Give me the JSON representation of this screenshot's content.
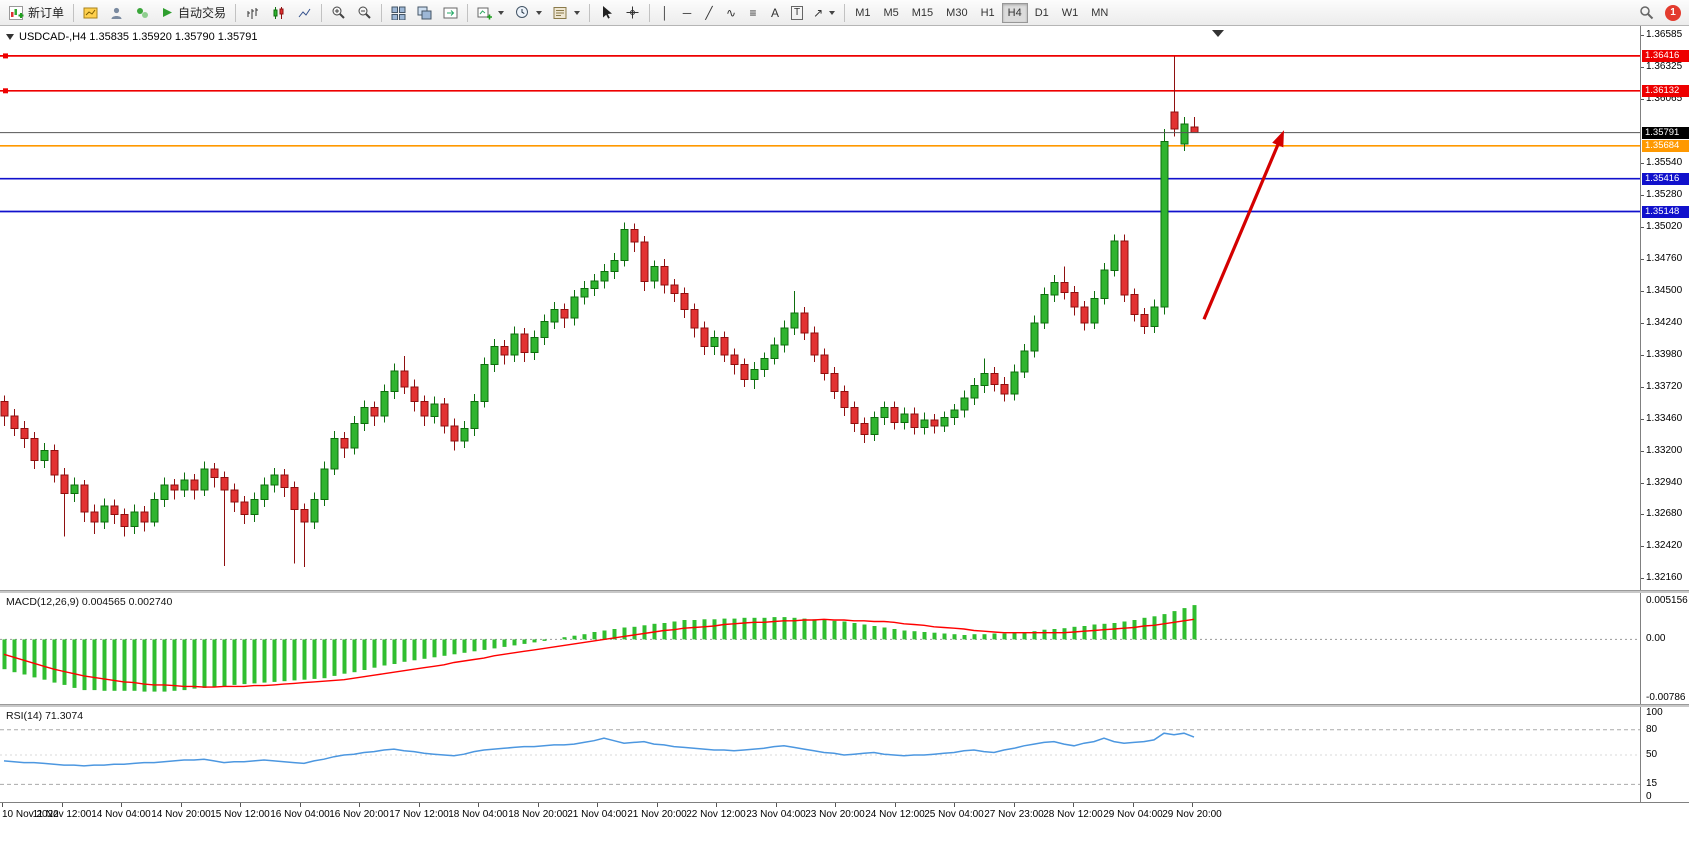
{
  "toolbar": {
    "new_order": "新订单",
    "autotrading": "自动交易",
    "badge_count": "1",
    "timeframes": [
      "M1",
      "M5",
      "M15",
      "M30",
      "H1",
      "H4",
      "D1",
      "W1",
      "MN"
    ],
    "active_timeframe": "H4",
    "line_tools": [
      {
        "name": "vertical-line-tool",
        "glyph": "│"
      },
      {
        "name": "horizontal-line-tool",
        "glyph": "─"
      },
      {
        "name": "trendline-tool",
        "glyph": "╱"
      },
      {
        "name": "cycle-lines-tool",
        "glyph": "∿"
      },
      {
        "name": "fibonacci-retracement-tool",
        "glyph": "≡"
      },
      {
        "name": "text-tool",
        "glyph": "A"
      },
      {
        "name": "text-label-tool",
        "glyph": "T",
        "boxed": true
      },
      {
        "name": "arrows-tool",
        "glyph": "↗",
        "caret": true
      }
    ]
  },
  "chart": {
    "title": "USDCAD-,H4 1.35835 1.35920 1.35790 1.35791",
    "symbol": "USDCAD-",
    "period": "H4",
    "open": "1.35835",
    "high": "1.35920",
    "low": "1.35790",
    "close": "1.35791"
  },
  "chart_data": {
    "type": "candlestick",
    "symbol": "USDCAD",
    "timeframe": "H4",
    "colors": {
      "bull": "#2FB42F",
      "bull_stroke": "#0E6E0E",
      "bear": "#E23232",
      "bear_stroke": "#8F1010",
      "macd": "#30BE30",
      "signal": "#FF0000",
      "rsi": "#4C97E0"
    },
    "price_axis": {
      "top": 1.3666,
      "bottom": 1.32064,
      "ticks": [
        "1.36585",
        "1.36325",
        "1.36065",
        "1.35540",
        "1.35280",
        "1.35020",
        "1.34760",
        "1.34500",
        "1.34240",
        "1.33980",
        "1.33720",
        "1.33460",
        "1.33200",
        "1.32940",
        "1.32680",
        "1.32420",
        "1.32160"
      ]
    },
    "hlines": [
      {
        "price": 1.36416,
        "label": "1.36416",
        "color": "#EE0000",
        "handle": true
      },
      {
        "price": 1.36132,
        "label": "1.36132",
        "color": "#EE0000",
        "handle": true
      },
      {
        "price": 1.35684,
        "label": "1.35684",
        "color": "#FF9900",
        "handle": false
      },
      {
        "price": 1.35416,
        "label": "1.35416",
        "color": "#1111CC",
        "handle": false
      },
      {
        "price": 1.35148,
        "label": "1.35148",
        "color": "#1111CC",
        "handle": false
      }
    ],
    "current_price": {
      "value": 1.35791,
      "label": "1.35791"
    },
    "arrow": {
      "bar_from": 120,
      "price_from": 1.3427,
      "bar_to": 128,
      "price_to": 1.3581,
      "color": "#D40000"
    },
    "candles": [
      [
        1.336,
        1.3365,
        1.334,
        1.3348
      ],
      [
        1.3348,
        1.3354,
        1.3332,
        1.3338
      ],
      [
        1.3338,
        1.3344,
        1.3322,
        1.333
      ],
      [
        1.333,
        1.3335,
        1.3305,
        1.3312
      ],
      [
        1.3312,
        1.3326,
        1.3306,
        1.332
      ],
      [
        1.332,
        1.3325,
        1.3294,
        1.33
      ],
      [
        1.33,
        1.3306,
        1.325,
        1.3285
      ],
      [
        1.3285,
        1.3298,
        1.3278,
        1.3292
      ],
      [
        1.3292,
        1.3296,
        1.3262,
        1.327
      ],
      [
        1.327,
        1.3276,
        1.3252,
        1.3262
      ],
      [
        1.3262,
        1.3281,
        1.3256,
        1.3275
      ],
      [
        1.3275,
        1.328,
        1.326,
        1.3268
      ],
      [
        1.3268,
        1.3273,
        1.325,
        1.3258
      ],
      [
        1.3258,
        1.3276,
        1.3252,
        1.327
      ],
      [
        1.327,
        1.3275,
        1.3254,
        1.3262
      ],
      [
        1.3262,
        1.3286,
        1.3258,
        1.328
      ],
      [
        1.328,
        1.3298,
        1.3274,
        1.3292
      ],
      [
        1.3292,
        1.3297,
        1.328,
        1.3288
      ],
      [
        1.3288,
        1.3302,
        1.3282,
        1.3296
      ],
      [
        1.3296,
        1.3301,
        1.328,
        1.3288
      ],
      [
        1.3288,
        1.3311,
        1.3283,
        1.3305
      ],
      [
        1.3305,
        1.331,
        1.329,
        1.3298
      ],
      [
        1.3298,
        1.3303,
        1.3226,
        1.3288
      ],
      [
        1.3288,
        1.3293,
        1.327,
        1.3278
      ],
      [
        1.3278,
        1.3283,
        1.326,
        1.3268
      ],
      [
        1.3268,
        1.3286,
        1.3262,
        1.328
      ],
      [
        1.328,
        1.3298,
        1.3274,
        1.3292
      ],
      [
        1.3292,
        1.3306,
        1.3286,
        1.33
      ],
      [
        1.33,
        1.3305,
        1.3282,
        1.329
      ],
      [
        1.329,
        1.3295,
        1.3228,
        1.3272
      ],
      [
        1.3272,
        1.3277,
        1.3225,
        1.3262
      ],
      [
        1.3262,
        1.3286,
        1.3256,
        1.328
      ],
      [
        1.328,
        1.3311,
        1.3275,
        1.3305
      ],
      [
        1.3305,
        1.3336,
        1.33,
        1.333
      ],
      [
        1.333,
        1.3335,
        1.3314,
        1.3322
      ],
      [
        1.3322,
        1.3348,
        1.3317,
        1.3342
      ],
      [
        1.3342,
        1.3361,
        1.3336,
        1.3355
      ],
      [
        1.3355,
        1.336,
        1.334,
        1.3348
      ],
      [
        1.3348,
        1.3374,
        1.3343,
        1.3368
      ],
      [
        1.3368,
        1.3391,
        1.3362,
        1.3385
      ],
      [
        1.3385,
        1.3397,
        1.3366,
        1.3372
      ],
      [
        1.3372,
        1.3378,
        1.3352,
        1.336
      ],
      [
        1.336,
        1.3365,
        1.334,
        1.3348
      ],
      [
        1.3348,
        1.3364,
        1.3342,
        1.3358
      ],
      [
        1.3358,
        1.3363,
        1.3334,
        1.334
      ],
      [
        1.334,
        1.3346,
        1.332,
        1.3328
      ],
      [
        1.3328,
        1.3344,
        1.3322,
        1.3338
      ],
      [
        1.3338,
        1.3366,
        1.3332,
        1.336
      ],
      [
        1.336,
        1.3396,
        1.3355,
        1.339
      ],
      [
        1.339,
        1.3411,
        1.3384,
        1.3405
      ],
      [
        1.3405,
        1.341,
        1.339,
        1.3398
      ],
      [
        1.3398,
        1.3421,
        1.3392,
        1.3415
      ],
      [
        1.3415,
        1.342,
        1.3392,
        1.34
      ],
      [
        1.34,
        1.3418,
        1.3394,
        1.3412
      ],
      [
        1.3412,
        1.3431,
        1.3406,
        1.3425
      ],
      [
        1.3425,
        1.3441,
        1.3419,
        1.3435
      ],
      [
        1.3435,
        1.344,
        1.342,
        1.3428
      ],
      [
        1.3428,
        1.3451,
        1.3422,
        1.3445
      ],
      [
        1.3445,
        1.3458,
        1.3439,
        1.3452
      ],
      [
        1.3452,
        1.3464,
        1.3446,
        1.3458
      ],
      [
        1.3458,
        1.3472,
        1.3452,
        1.3466
      ],
      [
        1.3466,
        1.3481,
        1.346,
        1.3475
      ],
      [
        1.3475,
        1.3506,
        1.347,
        1.35
      ],
      [
        1.35,
        1.3505,
        1.3482,
        1.349
      ],
      [
        1.349,
        1.3495,
        1.345,
        1.3458
      ],
      [
        1.3458,
        1.3475,
        1.3452,
        1.347
      ],
      [
        1.347,
        1.3476,
        1.3448,
        1.3455
      ],
      [
        1.3455,
        1.346,
        1.3441,
        1.3448
      ],
      [
        1.3448,
        1.3453,
        1.3428,
        1.3435
      ],
      [
        1.3435,
        1.344,
        1.3412,
        1.342
      ],
      [
        1.342,
        1.3425,
        1.3398,
        1.3405
      ],
      [
        1.3405,
        1.3418,
        1.3398,
        1.3412
      ],
      [
        1.3412,
        1.3417,
        1.3392,
        1.3398
      ],
      [
        1.3398,
        1.3403,
        1.3382,
        1.339
      ],
      [
        1.339,
        1.3395,
        1.3372,
        1.3378
      ],
      [
        1.3378,
        1.3392,
        1.337,
        1.3386
      ],
      [
        1.3386,
        1.34,
        1.338,
        1.3395
      ],
      [
        1.3395,
        1.3412,
        1.339,
        1.3406
      ],
      [
        1.3406,
        1.3426,
        1.34,
        1.342
      ],
      [
        1.342,
        1.345,
        1.3414,
        1.3432
      ],
      [
        1.3432,
        1.3437,
        1.341,
        1.3416
      ],
      [
        1.3416,
        1.3421,
        1.3392,
        1.3398
      ],
      [
        1.3398,
        1.3403,
        1.3377,
        1.3383
      ],
      [
        1.3383,
        1.3388,
        1.3362,
        1.3368
      ],
      [
        1.3368,
        1.3373,
        1.3348,
        1.3355
      ],
      [
        1.3355,
        1.336,
        1.3335,
        1.3342
      ],
      [
        1.3342,
        1.3347,
        1.3326,
        1.3333
      ],
      [
        1.3333,
        1.3352,
        1.3328,
        1.3347
      ],
      [
        1.3347,
        1.336,
        1.3341,
        1.3355
      ],
      [
        1.3355,
        1.336,
        1.3337,
        1.3343
      ],
      [
        1.3343,
        1.3355,
        1.3337,
        1.335
      ],
      [
        1.335,
        1.3355,
        1.3333,
        1.3339
      ],
      [
        1.3339,
        1.3351,
        1.3333,
        1.3345
      ],
      [
        1.3345,
        1.335,
        1.3334,
        1.334
      ],
      [
        1.334,
        1.3352,
        1.3335,
        1.3347
      ],
      [
        1.3347,
        1.3358,
        1.3341,
        1.3353
      ],
      [
        1.3353,
        1.3369,
        1.3347,
        1.3363
      ],
      [
        1.3363,
        1.3379,
        1.3357,
        1.3373
      ],
      [
        1.3373,
        1.3395,
        1.3367,
        1.3383
      ],
      [
        1.3383,
        1.3388,
        1.3368,
        1.3374
      ],
      [
        1.3374,
        1.338,
        1.336,
        1.3366
      ],
      [
        1.3366,
        1.339,
        1.3361,
        1.3384
      ],
      [
        1.3384,
        1.3407,
        1.3379,
        1.3401
      ],
      [
        1.3401,
        1.343,
        1.3396,
        1.3424
      ],
      [
        1.3424,
        1.3453,
        1.3419,
        1.3447
      ],
      [
        1.3447,
        1.3463,
        1.3441,
        1.3457
      ],
      [
        1.3457,
        1.347,
        1.3443,
        1.3449
      ],
      [
        1.3449,
        1.3454,
        1.343,
        1.3437
      ],
      [
        1.3437,
        1.3442,
        1.3418,
        1.3424
      ],
      [
        1.3424,
        1.345,
        1.3419,
        1.3444
      ],
      [
        1.3444,
        1.3473,
        1.3439,
        1.3467
      ],
      [
        1.3467,
        1.3496,
        1.3462,
        1.3491
      ],
      [
        1.3491,
        1.3496,
        1.3441,
        1.3447
      ],
      [
        1.3447,
        1.3452,
        1.3425,
        1.3431
      ],
      [
        1.3431,
        1.3436,
        1.3415,
        1.3421
      ],
      [
        1.3421,
        1.3443,
        1.3416,
        1.3437
      ],
      [
        1.3437,
        1.3582,
        1.3431,
        1.3572
      ],
      [
        1.3596,
        1.3641,
        1.3576,
        1.3582
      ],
      [
        1.357,
        1.3592,
        1.3564,
        1.3586
      ],
      [
        1.35835,
        1.3592,
        1.3579,
        1.35791
      ]
    ],
    "time_labels": [
      "10 Nov 2022",
      "11 Nov 12:00",
      "14 Nov 04:00",
      "14 Nov 20:00",
      "15 Nov 12:00",
      "16 Nov 04:00",
      "16 Nov 20:00",
      "17 Nov 12:00",
      "18 Nov 04:00",
      "18 Nov 20:00",
      "21 Nov 04:00",
      "21 Nov 20:00",
      "22 Nov 12:00",
      "23 Nov 04:00",
      "23 Nov 20:00",
      "24 Nov 12:00",
      "25 Nov 04:00",
      "27 Nov 23:00",
      "28 Nov 12:00",
      "29 Nov 04:00",
      "29 Nov 20:00"
    ],
    "macd": {
      "label": "MACD(12,26,9) 0.004565 0.002740",
      "max": 0.005156,
      "min": -0.00786,
      "axis_labels": [
        {
          "text": "0.005156",
          "value": 0.005156
        },
        {
          "text": "0.00",
          "value": 0
        },
        {
          "text": "-0.00786",
          "value": -0.00786
        }
      ],
      "values": [
        -0.004,
        -0.0044,
        -0.0047,
        -0.0051,
        -0.0054,
        -0.0058,
        -0.0061,
        -0.0065,
        -0.0068,
        -0.0068,
        -0.0069,
        -0.0069,
        -0.0069,
        -0.0069,
        -0.007,
        -0.007,
        -0.007,
        -0.0069,
        -0.0068,
        -0.0066,
        -0.0065,
        -0.0064,
        -0.0063,
        -0.0061,
        -0.006,
        -0.0059,
        -0.0058,
        -0.0057,
        -0.0056,
        -0.0055,
        -0.0054,
        -0.0053,
        -0.0052,
        -0.0049,
        -0.0046,
        -0.0044,
        -0.0041,
        -0.0038,
        -0.0035,
        -0.0033,
        -0.003,
        -0.0028,
        -0.0026,
        -0.0024,
        -0.0022,
        -0.002,
        -0.0018,
        -0.0016,
        -0.0014,
        -0.0012,
        -0.001,
        -0.0008,
        -0.0006,
        -0.0004,
        -0.0002,
        0.0,
        0.0003,
        0.0005,
        0.0007,
        0.001,
        0.0012,
        0.0014,
        0.0016,
        0.0017,
        0.0019,
        0.0021,
        0.0022,
        0.0024,
        0.0026,
        0.0026,
        0.0027,
        0.0027,
        0.0028,
        0.0028,
        0.0029,
        0.0029,
        0.0029,
        0.003,
        0.003,
        0.0029,
        0.0028,
        0.0027,
        0.0026,
        0.0025,
        0.0024,
        0.0022,
        0.002,
        0.0018,
        0.0016,
        0.0014,
        0.0012,
        0.0011,
        0.001,
        0.0009,
        0.0008,
        0.0007,
        0.0006,
        0.0007,
        0.0007,
        0.0008,
        0.0008,
        0.0009,
        0.001,
        0.0011,
        0.0013,
        0.0014,
        0.0015,
        0.0017,
        0.0018,
        0.002,
        0.0021,
        0.0022,
        0.0024,
        0.0026,
        0.0029,
        0.0031,
        0.0034,
        0.0038,
        0.0042,
        0.0046
      ],
      "signal": [
        -0.002,
        -0.0024,
        -0.0028,
        -0.0032,
        -0.0036,
        -0.004,
        -0.0043,
        -0.0046,
        -0.0049,
        -0.0051,
        -0.0053,
        -0.0055,
        -0.0057,
        -0.0058,
        -0.006,
        -0.0061,
        -0.0061,
        -0.0062,
        -0.0063,
        -0.0063,
        -0.0064,
        -0.0064,
        -0.0063,
        -0.0063,
        -0.0063,
        -0.0062,
        -0.0062,
        -0.0061,
        -0.006,
        -0.0059,
        -0.0058,
        -0.0057,
        -0.0056,
        -0.0055,
        -0.0054,
        -0.0052,
        -0.005,
        -0.0048,
        -0.0046,
        -0.0044,
        -0.0042,
        -0.004,
        -0.0038,
        -0.0036,
        -0.0034,
        -0.0031,
        -0.0029,
        -0.0027,
        -0.0025,
        -0.0022,
        -0.002,
        -0.0018,
        -0.0016,
        -0.0014,
        -0.0012,
        -0.001,
        -0.0008,
        -0.0006,
        -0.0004,
        -0.0002,
        0.0,
        0.0002,
        0.0004,
        0.0006,
        0.0008,
        0.001,
        0.0012,
        0.0013,
        0.0015,
        0.0016,
        0.0017,
        0.0018,
        0.002,
        0.0021,
        0.0022,
        0.0023,
        0.0023,
        0.0024,
        0.0025,
        0.0025,
        0.0026,
        0.0026,
        0.0027,
        0.0026,
        0.0026,
        0.0025,
        0.0025,
        0.0024,
        0.0024,
        0.0023,
        0.0021,
        0.002,
        0.0019,
        0.0017,
        0.0016,
        0.0015,
        0.0014,
        0.0012,
        0.0011,
        0.001,
        0.0009,
        0.0009,
        0.0009,
        0.0009,
        0.0009,
        0.0009,
        0.0009,
        0.001,
        0.0011,
        0.0012,
        0.0013,
        0.0014,
        0.0015,
        0.0016,
        0.0018,
        0.0019,
        0.0021,
        0.0023,
        0.0025,
        0.0027
      ]
    },
    "rsi": {
      "label": "RSI(14) 71.3074",
      "value": "71.3074",
      "levels": [
        80,
        15
      ],
      "axis_labels": [
        {
          "text": "100",
          "value": 100
        },
        {
          "text": "80",
          "value": 80
        },
        {
          "text": "50",
          "value": 50
        },
        {
          "text": "15",
          "value": 15
        },
        {
          "text": "0",
          "value": 0
        }
      ],
      "values": [
        43,
        42,
        41,
        41,
        40,
        39,
        38,
        38,
        37,
        38,
        38,
        39,
        39,
        40,
        41,
        41,
        42,
        43,
        44,
        44,
        45,
        43,
        41,
        42,
        42,
        43,
        44,
        43,
        42,
        41,
        40,
        43,
        45,
        48,
        50,
        51,
        53,
        54,
        56,
        57,
        55,
        54,
        52,
        51,
        50,
        49,
        51,
        54,
        56,
        57,
        58,
        59,
        60,
        60,
        61,
        62,
        62,
        63,
        65,
        67,
        70,
        67,
        64,
        65,
        66,
        63,
        62,
        60,
        59,
        58,
        57,
        56,
        56,
        55,
        56,
        57,
        58,
        60,
        61,
        59,
        57,
        55,
        53,
        52,
        50,
        51,
        52,
        53,
        51,
        50,
        49,
        50,
        50,
        51,
        52,
        53,
        55,
        56,
        54,
        53,
        56,
        58,
        61,
        63,
        65,
        66,
        63,
        61,
        64,
        66,
        70,
        66,
        64,
        65,
        66,
        68,
        76,
        74,
        76,
        71.3
      ]
    }
  }
}
